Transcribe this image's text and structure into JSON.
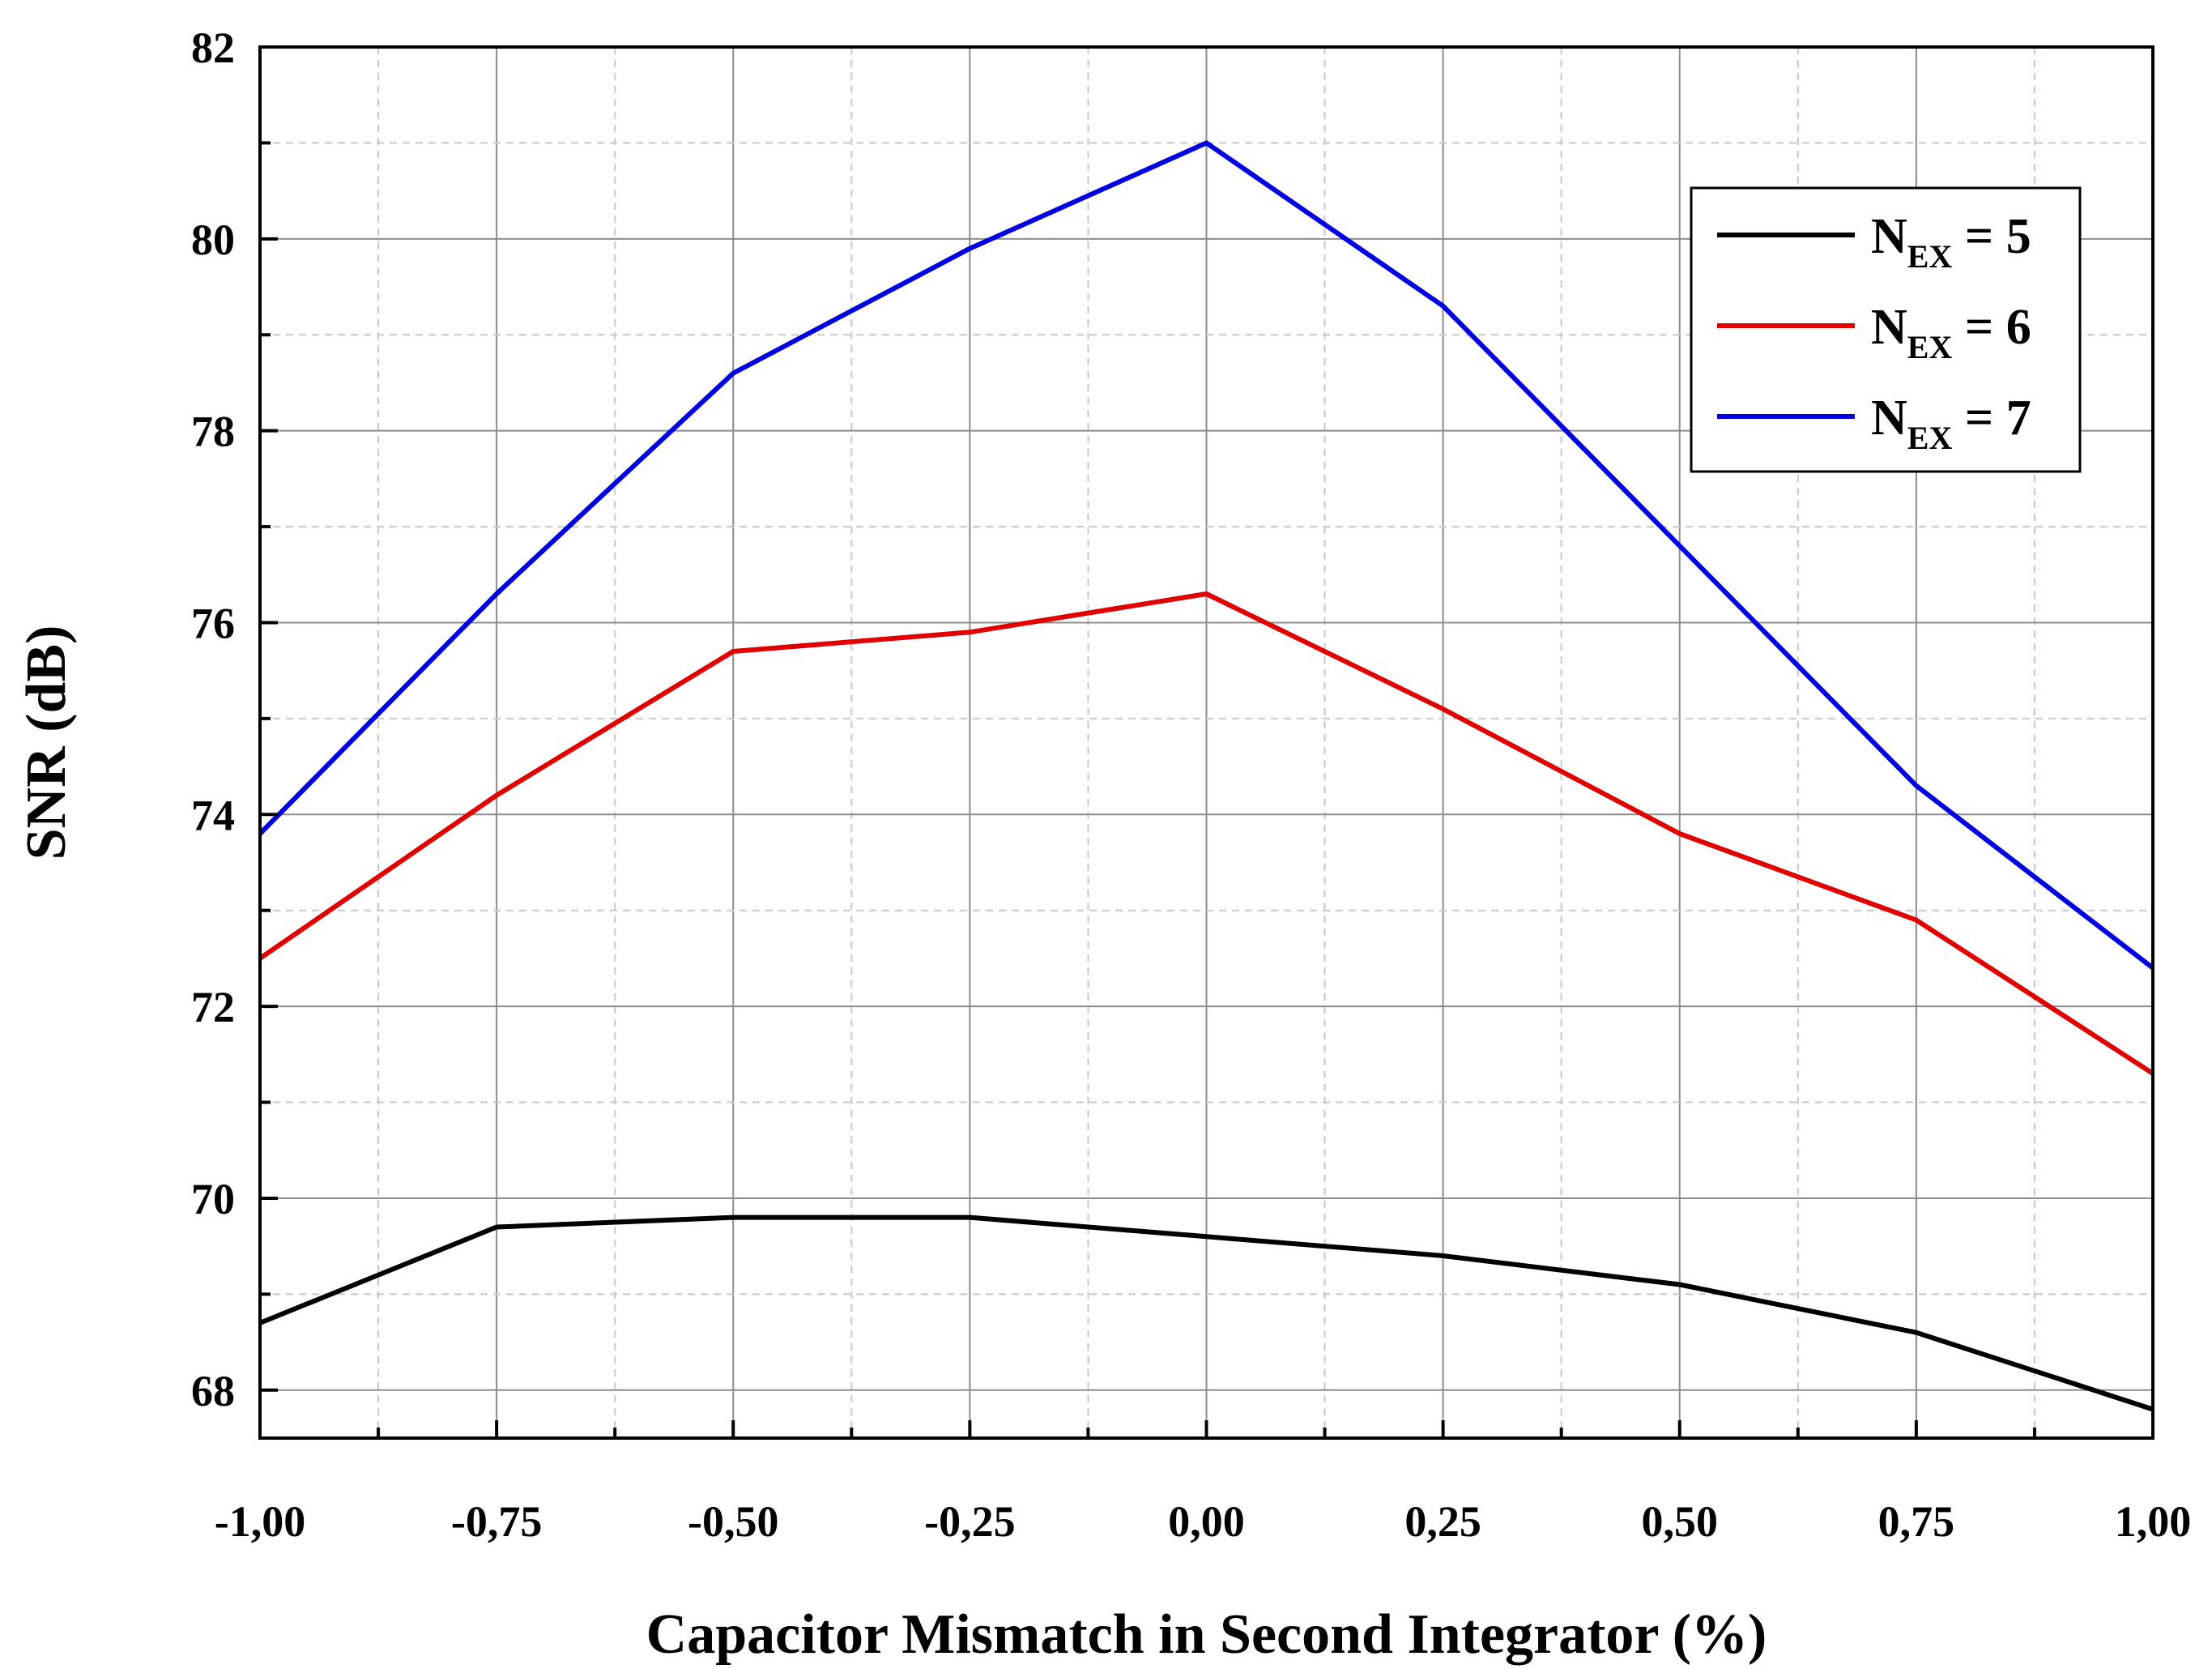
{
  "chart_data": {
    "type": "line",
    "title": "",
    "xlabel": "Capacitor Mismatch in Second Integrator (%)",
    "ylabel": "SNR (dB)",
    "xlim": [
      -1.0,
      1.0
    ],
    "ylim": [
      67.5,
      82
    ],
    "x": [
      -1.0,
      -0.75,
      -0.5,
      -0.25,
      0.0,
      0.25,
      0.5,
      0.75,
      1.0
    ],
    "x_ticks": [
      {
        "value": -1.0,
        "label": "-1,00"
      },
      {
        "value": -0.75,
        "label": "-0,75"
      },
      {
        "value": -0.5,
        "label": "-0,50"
      },
      {
        "value": -0.25,
        "label": "-0,25"
      },
      {
        "value": 0.0,
        "label": "0,00"
      },
      {
        "value": 0.25,
        "label": "0,25"
      },
      {
        "value": 0.5,
        "label": "0,50"
      },
      {
        "value": 0.75,
        "label": "0,75"
      },
      {
        "value": 1.0,
        "label": "1,00"
      }
    ],
    "y_ticks": [
      {
        "value": 68,
        "label": "68"
      },
      {
        "value": 70,
        "label": "70"
      },
      {
        "value": 72,
        "label": "72"
      },
      {
        "value": 74,
        "label": "74"
      },
      {
        "value": 76,
        "label": "76"
      },
      {
        "value": 78,
        "label": "78"
      },
      {
        "value": 80,
        "label": "80"
      },
      {
        "value": 82,
        "label": "82"
      }
    ],
    "grid": true,
    "legend_position": "top-right",
    "series": [
      {
        "legend_main": "N",
        "legend_sub": "EX",
        "legend_tail": " = 5",
        "color": "#000000",
        "values": [
          68.7,
          69.7,
          69.8,
          69.8,
          69.6,
          69.4,
          69.1,
          68.6,
          67.8
        ]
      },
      {
        "legend_main": "N",
        "legend_sub": "EX",
        "legend_tail": " = 6",
        "color": "#e00000",
        "values": [
          72.5,
          74.2,
          75.7,
          75.9,
          76.3,
          75.1,
          73.8,
          72.9,
          71.3
        ]
      },
      {
        "legend_main": "N",
        "legend_sub": "EX",
        "legend_tail": " = 7",
        "color": "#0000e0",
        "values": [
          73.8,
          76.3,
          78.6,
          79.9,
          81.0,
          79.3,
          76.8,
          74.3,
          72.4
        ]
      }
    ]
  }
}
